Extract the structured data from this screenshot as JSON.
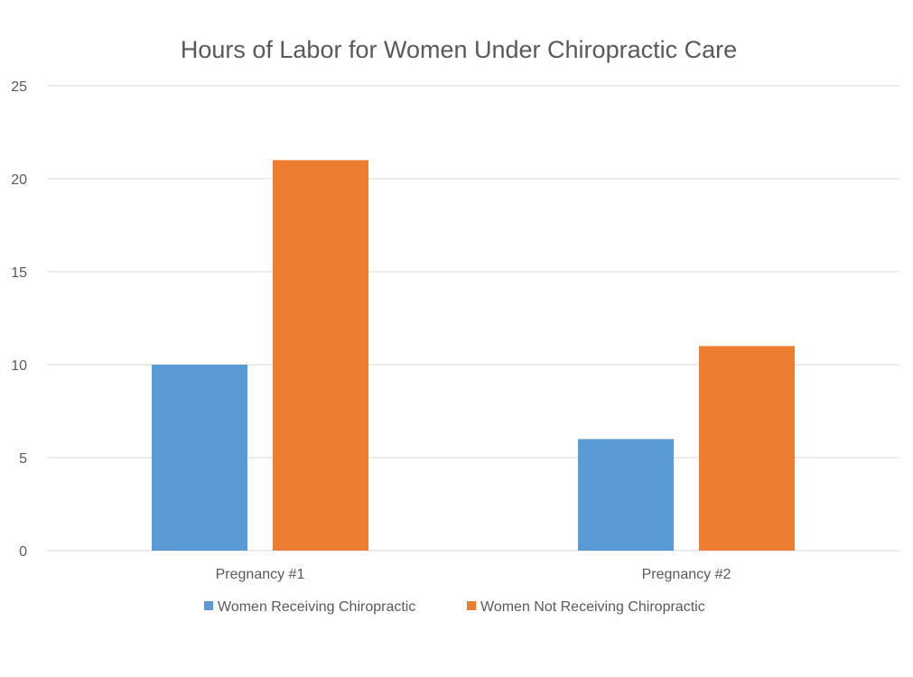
{
  "chart_data": {
    "type": "bar",
    "title": "Hours of Labor for Women Under Chiropractic Care",
    "xlabel": "",
    "ylabel": "",
    "categories": [
      "Pregnancy #1",
      "Pregnancy #2"
    ],
    "series": [
      {
        "name": "Women Receiving Chiropractic",
        "values": [
          10,
          6
        ],
        "color": "#5b9bd5"
      },
      {
        "name": "Women Not Receiving Chiropractic",
        "values": [
          21,
          11
        ],
        "color": "#ed7d31"
      }
    ],
    "ylim": [
      0,
      25
    ],
    "yticks": [
      0,
      5,
      10,
      15,
      20,
      25
    ],
    "grid": true,
    "legend_position": "bottom",
    "gridline_color": "#d9d9d9"
  }
}
